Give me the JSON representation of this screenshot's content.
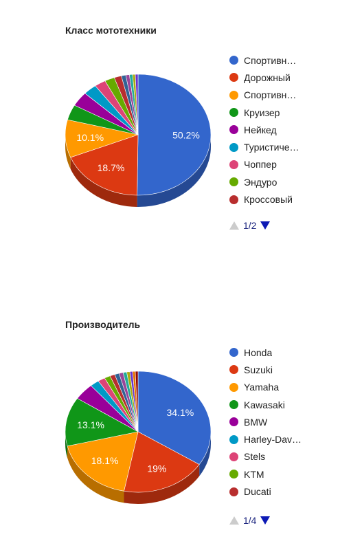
{
  "chart_data": [
    {
      "type": "pie",
      "title": "Класс мототехники",
      "legend_position": "right",
      "legend": [
        "Спортивн…",
        "Дорожный",
        "Спортивн…",
        "Круизер",
        "Нейкед",
        "Туристиче…",
        "Чоппер",
        "Эндуро",
        "Кроссовый"
      ],
      "slices": [
        {
          "value": 50.2,
          "color": "#3366cc",
          "label": "50.2%"
        },
        {
          "value": 18.7,
          "color": "#dc3912",
          "label": "18.7%"
        },
        {
          "value": 10.1,
          "color": "#ff9900",
          "label": "10.1%"
        },
        {
          "value": 4.1,
          "color": "#109618"
        },
        {
          "value": 3.9,
          "color": "#990099"
        },
        {
          "value": 3.0,
          "color": "#0099c6"
        },
        {
          "value": 2.5,
          "color": "#dd4477"
        },
        {
          "value": 2.2,
          "color": "#66aa00"
        },
        {
          "value": 1.6,
          "color": "#b82e2e"
        },
        {
          "value": 1.0,
          "color": "#316395"
        },
        {
          "value": 0.8,
          "color": "#994499"
        },
        {
          "value": 0.7,
          "color": "#22aa99"
        },
        {
          "value": 0.6,
          "color": "#aaaa11"
        },
        {
          "value": 0.6,
          "color": "#6633cc"
        }
      ],
      "pager": {
        "text": "1/2"
      }
    },
    {
      "type": "pie",
      "title": "Производитель",
      "legend_position": "right",
      "legend": [
        "Honda",
        "Suzuki",
        "Yamaha",
        "Kawasaki",
        "BMW",
        "Harley-Dav…",
        "Stels",
        "KTM",
        "Ducati"
      ],
      "slices": [
        {
          "value": 34.1,
          "color": "#3366cc",
          "label": "34.1%"
        },
        {
          "value": 19,
          "color": "#dc3912",
          "label": "19%"
        },
        {
          "value": 18.1,
          "color": "#ff9900",
          "label": "18.1%"
        },
        {
          "value": 13.1,
          "color": "#109618",
          "label": "13.1%"
        },
        {
          "value": 4.5,
          "color": "#990099"
        },
        {
          "value": 2.0,
          "color": "#0099c6"
        },
        {
          "value": 1.6,
          "color": "#dd4477"
        },
        {
          "value": 1.3,
          "color": "#66aa00"
        },
        {
          "value": 1.1,
          "color": "#b82e2e"
        },
        {
          "value": 1.0,
          "color": "#316395"
        },
        {
          "value": 0.9,
          "color": "#994499"
        },
        {
          "value": 0.8,
          "color": "#22aa99"
        },
        {
          "value": 0.7,
          "color": "#aaaa11"
        },
        {
          "value": 0.6,
          "color": "#6633cc"
        },
        {
          "value": 0.6,
          "color": "#e67300"
        },
        {
          "value": 0.6,
          "color": "#8b0707"
        }
      ],
      "pager": {
        "text": "1/4"
      }
    }
  ],
  "pager_colors": {
    "prev_disabled": "#cccccc",
    "next": "#0d1ab5"
  }
}
